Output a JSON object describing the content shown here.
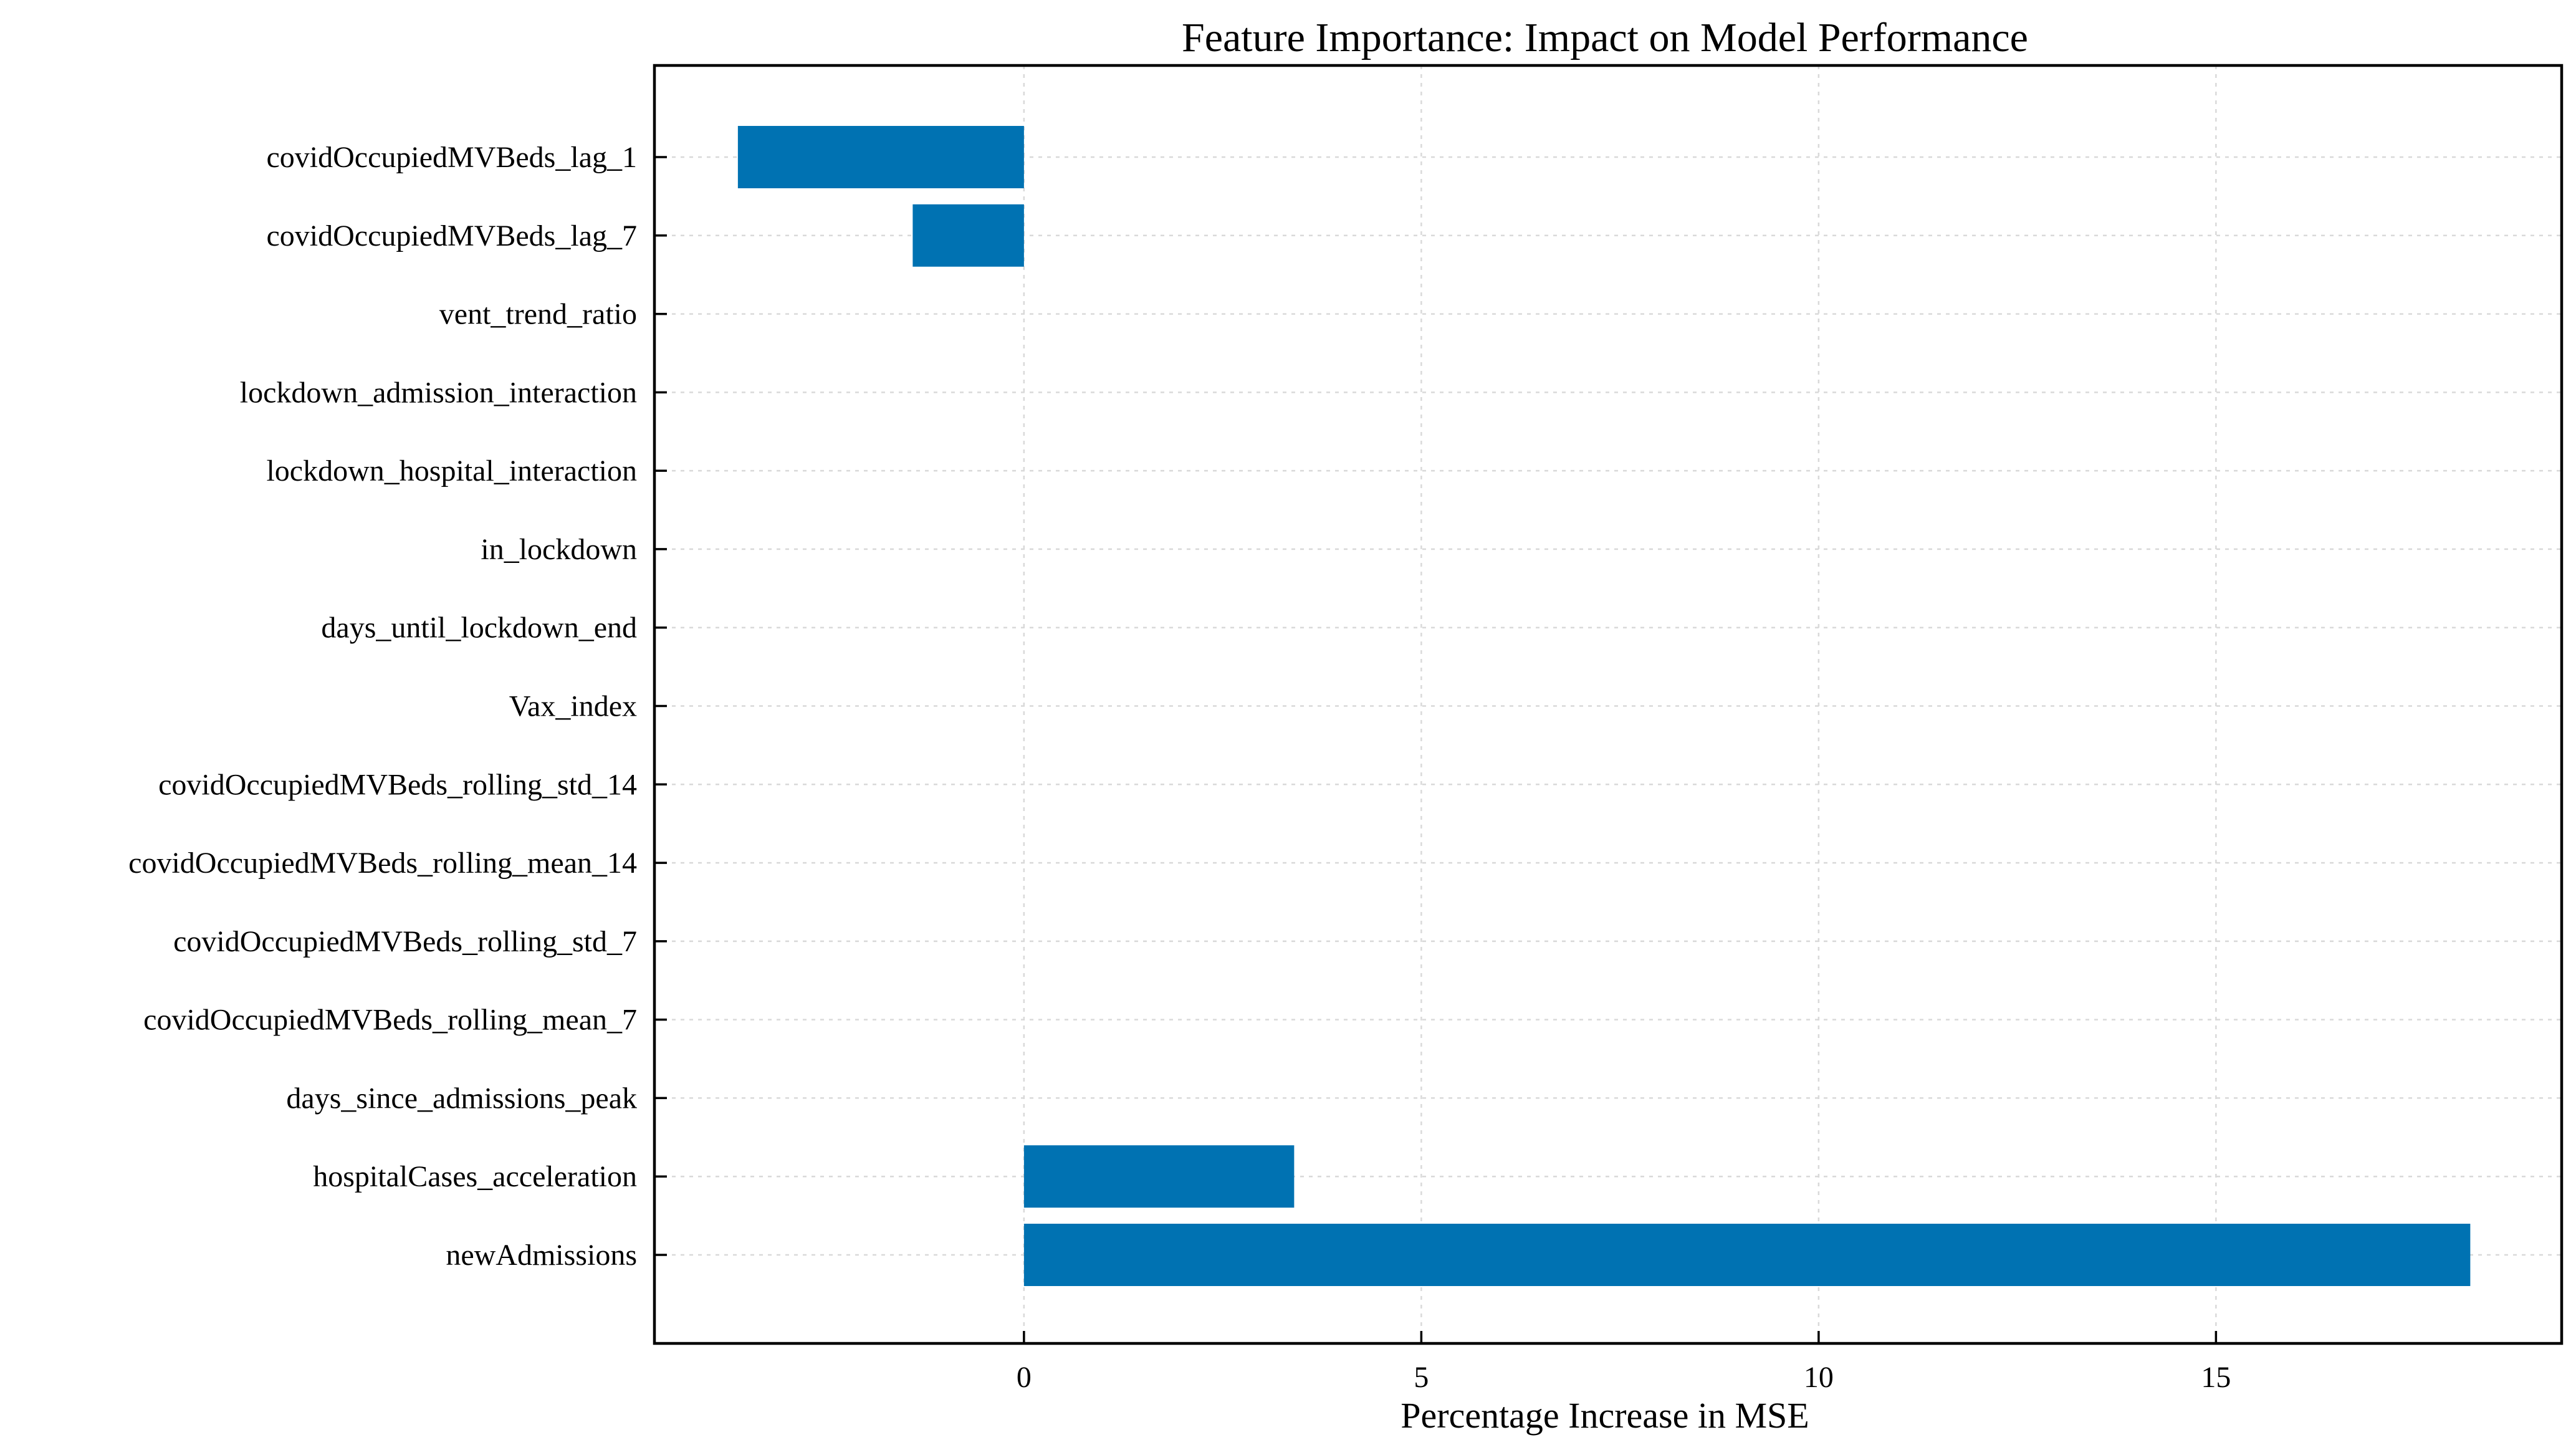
{
  "chart_data": {
    "type": "bar",
    "orientation": "horizontal",
    "title": "Feature Importance: Impact on Model Performance",
    "xlabel": "Percentage Increase in MSE",
    "ylabel": "",
    "xlim": [
      -4.65,
      19.35
    ],
    "xticks": [
      0,
      5,
      10,
      15
    ],
    "xtick_labels": [
      "0",
      "5",
      "10",
      "15"
    ],
    "grid": true,
    "bar_color": "#0072b2",
    "categories": [
      "newAdmissions",
      "hospitalCases_acceleration",
      "days_since_admissions_peak",
      "covidOccupiedMVBeds_rolling_mean_7",
      "covidOccupiedMVBeds_rolling_std_7",
      "covidOccupiedMVBeds_rolling_mean_14",
      "covidOccupiedMVBeds_rolling_std_14",
      "Vax_index",
      "days_until_lockdown_end",
      "in_lockdown",
      "lockdown_hospital_interaction",
      "lockdown_admission_interaction",
      "vent_trend_ratio",
      "covidOccupiedMVBeds_lag_7",
      "covidOccupiedMVBeds_lag_1"
    ],
    "values": [
      18.2,
      3.4,
      0,
      0,
      0,
      0,
      0,
      0,
      0,
      0,
      0,
      0,
      0,
      -1.4,
      -3.6
    ]
  }
}
